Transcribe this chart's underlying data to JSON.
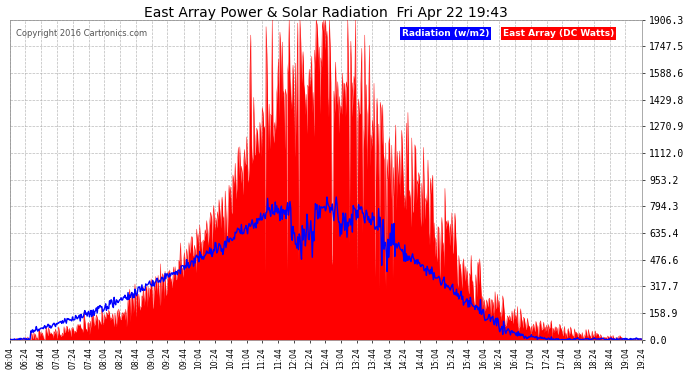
{
  "title": "East Array Power & Solar Radiation  Fri Apr 22 19:43",
  "copyright": "Copyright 2016 Cartronics.com",
  "legend_radiation": "Radiation (w/m2)",
  "legend_east": "East Array (DC Watts)",
  "ymax": 1906.3,
  "yticks": [
    0.0,
    158.9,
    317.7,
    476.6,
    635.4,
    794.3,
    953.2,
    1112.0,
    1270.9,
    1429.8,
    1588.6,
    1747.5,
    1906.3
  ],
  "bg_color": "#ffffff",
  "plot_bg_color": "#ffffff",
  "title_color": "#000000",
  "grid_color": "#aaaaaa",
  "radiation_color": "#0000ff",
  "east_array_color": "#ff0000",
  "east_array_fill": "#ff0000",
  "xtick_labels": [
    "06:04",
    "06:24",
    "06:44",
    "07:04",
    "07:24",
    "07:44",
    "08:04",
    "08:24",
    "08:44",
    "09:04",
    "09:24",
    "09:44",
    "10:04",
    "10:24",
    "10:44",
    "11:04",
    "11:24",
    "11:44",
    "12:04",
    "12:24",
    "12:44",
    "13:04",
    "13:24",
    "13:44",
    "14:04",
    "14:24",
    "14:44",
    "15:04",
    "15:24",
    "15:44",
    "16:04",
    "16:24",
    "16:44",
    "17:04",
    "17:24",
    "17:44",
    "18:04",
    "18:24",
    "18:44",
    "19:04",
    "19:24"
  ],
  "figsize": [
    6.9,
    3.75
  ],
  "dpi": 100
}
